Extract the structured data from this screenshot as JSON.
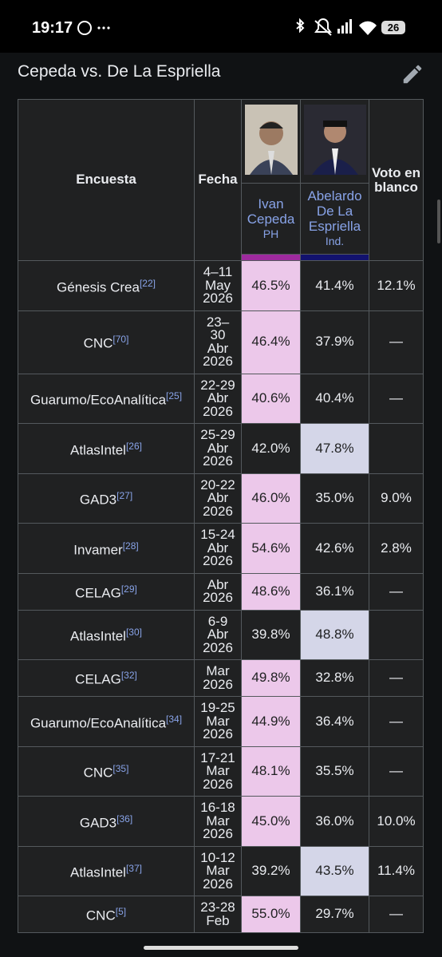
{
  "status_bar": {
    "time": "19:17",
    "battery": "26"
  },
  "section": {
    "title": "Cepeda vs. De La Espriella"
  },
  "table": {
    "headers": {
      "poll": "Encuesta",
      "date": "Fecha",
      "blank": "Voto en blanco"
    },
    "candidates": [
      {
        "name": "Ivan Cepeda",
        "party": "PH",
        "color": "#9e2a9e",
        "highlight": "#ecc8ea"
      },
      {
        "name": "Abelardo De La Espriella",
        "party": "Ind.",
        "color": "#12126e",
        "highlight": "#d4d6e8"
      }
    ],
    "rows": [
      {
        "poll": "Génesis Crea",
        "ref": "[22]",
        "date": [
          "4–11",
          "May",
          "2026"
        ],
        "values": [
          "46.5%",
          "41.4%"
        ],
        "blank": "12.1%",
        "leader": 0
      },
      {
        "poll": "CNC",
        "ref": "[70]",
        "date": [
          "23–",
          "30",
          "Abr",
          "2026"
        ],
        "values": [
          "46.4%",
          "37.9%"
        ],
        "blank": "—",
        "leader": 0
      },
      {
        "poll": "Guarumo/EcoAnalítica",
        "ref": "[25]",
        "date": [
          "22-29",
          "Abr",
          "2026"
        ],
        "values": [
          "40.6%",
          "40.4%"
        ],
        "blank": "—",
        "leader": 0
      },
      {
        "poll": "AtlasIntel",
        "ref": "[26]",
        "date": [
          "25-29",
          "Abr",
          "2026"
        ],
        "values": [
          "42.0%",
          "47.8%"
        ],
        "leader": 1
      },
      {
        "poll": "GAD3",
        "ref": "[27]",
        "date": [
          "20-22",
          "Abr",
          "2026"
        ],
        "values": [
          "46.0%",
          "35.0%"
        ],
        "blank": "9.0%",
        "leader": 0
      },
      {
        "poll": "Invamer",
        "ref": "[28]",
        "date": [
          "15-24",
          "Abr",
          "2026"
        ],
        "values": [
          "54.6%",
          "42.6%"
        ],
        "blank": "2.8%",
        "leader": 0
      },
      {
        "poll": "CELAG",
        "ref": "[29]",
        "date": [
          "Abr",
          "2026"
        ],
        "values": [
          "48.6%",
          "36.1%"
        ],
        "blank": "—",
        "leader": 0
      },
      {
        "poll": "AtlasIntel",
        "ref": "[30]",
        "date": [
          "6-9",
          "Abr",
          "2026"
        ],
        "values": [
          "39.8%",
          "48.8%"
        ],
        "leader": 1
      },
      {
        "poll": "CELAG",
        "ref": "[32]",
        "date": [
          "Mar",
          "2026"
        ],
        "values": [
          "49.8%",
          "32.8%"
        ],
        "blank": "—",
        "leader": 0
      },
      {
        "poll": "Guarumo/EcoAnalítica",
        "ref": "[34]",
        "date": [
          "19-25",
          "Mar",
          "2026"
        ],
        "values": [
          "44.9%",
          "36.4%"
        ],
        "blank": "—",
        "leader": 0
      },
      {
        "poll": "CNC",
        "ref": "[35]",
        "date": [
          "17-21",
          "Mar",
          "2026"
        ],
        "values": [
          "48.1%",
          "35.5%"
        ],
        "blank": "—",
        "leader": 0
      },
      {
        "poll": "GAD3",
        "ref": "[36]",
        "date": [
          "16-18",
          "Mar",
          "2026"
        ],
        "values": [
          "45.0%",
          "36.0%"
        ],
        "blank": "10.0%",
        "leader": 0
      },
      {
        "poll": "AtlasIntel",
        "ref": "[37]",
        "date": [
          "10-12",
          "Mar",
          "2026"
        ],
        "values": [
          "39.2%",
          "43.5%"
        ],
        "blank": "11.4%",
        "leader": 1
      },
      {
        "poll": "CNC",
        "ref": "[5]",
        "date": [
          "23-28",
          "Feb"
        ],
        "values": [
          "55.0%",
          "29.7%"
        ],
        "blank": "—",
        "leader": 0
      }
    ]
  }
}
